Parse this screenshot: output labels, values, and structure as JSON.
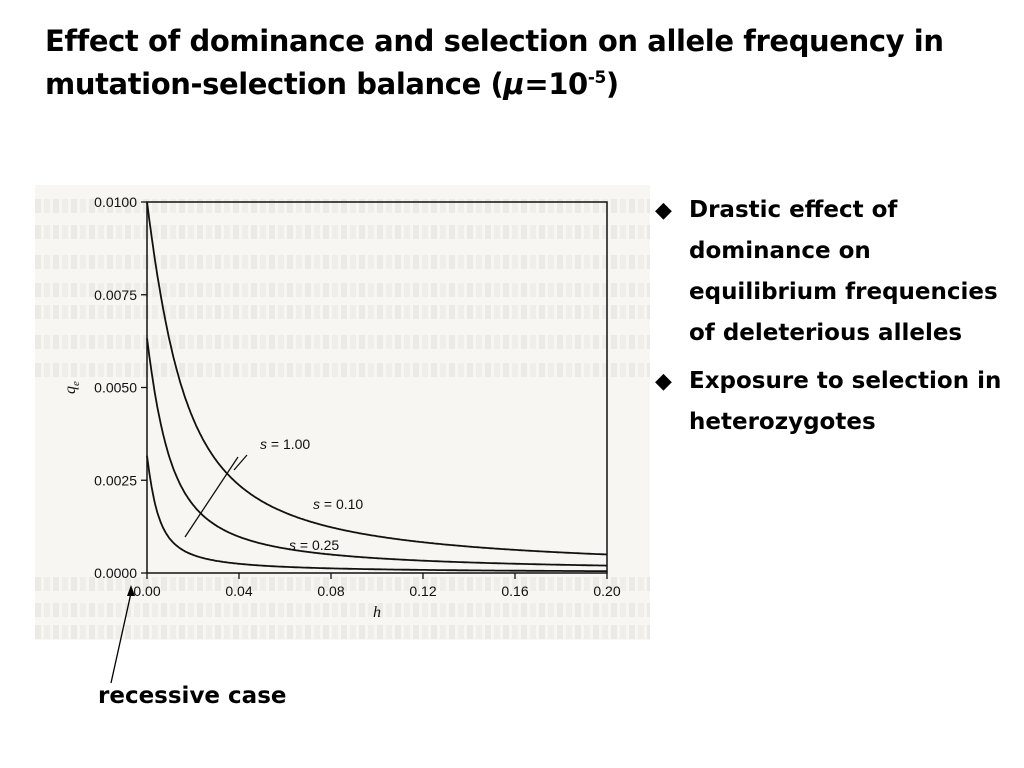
{
  "slide": {
    "title_main": "Effect of dominance and selection on  allele frequency in mutation-selection balance (",
    "title_mu": "μ",
    "title_eq": "=10",
    "title_exp": "-5",
    "title_close": ")"
  },
  "bullets": [
    {
      "icon": "diamond-bullet-icon",
      "text": "Drastic effect of dominance on equilibrium frequencies of deleterious alleles"
    },
    {
      "icon": "diamond-bullet-icon",
      "text": "Exposure to selection in heterozygotes"
    }
  ],
  "annotation": {
    "label": "recessive case"
  },
  "chart_data": {
    "type": "line",
    "xlabel": "h",
    "ylabel": "q",
    "ylabel_sub": "e",
    "xlim": [
      0,
      0.2
    ],
    "ylim": [
      0,
      0.01
    ],
    "x_ticks": [
      "0.00",
      "0.04",
      "0.08",
      "0.12",
      "0.16",
      "0.20"
    ],
    "y_ticks": [
      "0.0000",
      "0.0025",
      "0.0050",
      "0.0075",
      "0.0100"
    ],
    "mu": 1e-05,
    "series": [
      {
        "name": "s = 0.10",
        "s": 0.1,
        "x": [
          0.0,
          0.005,
          0.01,
          0.02,
          0.04,
          0.06,
          0.08,
          0.1,
          0.12,
          0.16,
          0.2
        ],
        "values": [
          0.01,
          0.00618,
          0.0039,
          0.00209,
          0.00106,
          0.00071,
          0.00053,
          0.00043,
          0.00036,
          0.00027,
          0.00021
        ]
      },
      {
        "name": "s = 0.25",
        "s": 0.25,
        "x": [
          0.0,
          0.005,
          0.01,
          0.02,
          0.04,
          0.06,
          0.08,
          0.1,
          0.12,
          0.16,
          0.2
        ],
        "values": [
          0.00632,
          0.00296,
          0.0017,
          0.00088,
          0.00044,
          0.00029,
          0.00022,
          0.00018,
          0.00015,
          0.00011,
          9e-05
        ]
      },
      {
        "name": "s = 1.00",
        "s": 1.0,
        "x": [
          0.0,
          0.005,
          0.01,
          0.02,
          0.04,
          0.06,
          0.08,
          0.1,
          0.12,
          0.16,
          0.2
        ],
        "values": [
          0.00316,
          0.00103,
          0.00055,
          0.00028,
          0.00014,
          9e-05,
          7e-05,
          6e-05,
          5e-05,
          4e-05,
          3e-05
        ]
      }
    ],
    "labels": [
      {
        "text_var": "s",
        "text_val": " = 1.00",
        "series": "s = 1.00"
      },
      {
        "text_var": "s",
        "text_val": " = 0.10",
        "series": "s = 0.10"
      },
      {
        "text_var": "s",
        "text_val": " = 0.25",
        "series": "s = 0.25"
      }
    ]
  }
}
